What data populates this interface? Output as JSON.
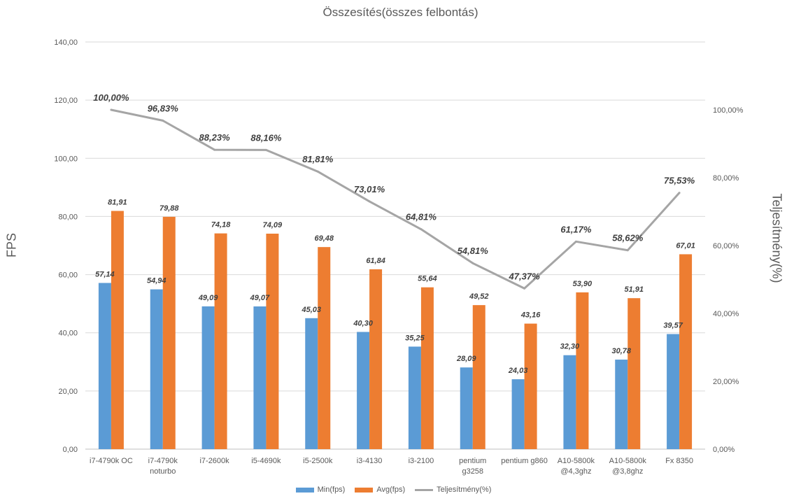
{
  "chart_data": {
    "type": "bar",
    "title": "Összesítés(összes felbontás)",
    "ylabel": "FPS",
    "y2label": "Teljesítmény(%)",
    "ylim": [
      0,
      140
    ],
    "y2lim": [
      0,
      120
    ],
    "y_ticks": [
      "0,00",
      "20,00",
      "40,00",
      "60,00",
      "80,00",
      "100,00",
      "120,00",
      "140,00"
    ],
    "y2_ticks": [
      "0,00%",
      "20,00%",
      "40,00%",
      "60,00%",
      "80,00%",
      "100,00%"
    ],
    "grid": true,
    "legend_position": "bottom",
    "categories": [
      [
        "i7-4790k OC"
      ],
      [
        "i7-4790k",
        "noturbo"
      ],
      [
        "i7-2600k"
      ],
      [
        "i5-4690k"
      ],
      [
        "i5-2500k"
      ],
      [
        "i3-4130"
      ],
      [
        "i3-2100"
      ],
      [
        "pentium",
        "g3258"
      ],
      [
        "pentium g860"
      ],
      [
        "A10-5800k",
        "@4,3ghz"
      ],
      [
        "A10-5800k",
        "@3,8ghz"
      ],
      [
        "Fx 8350"
      ]
    ],
    "series": [
      {
        "name": "Min(fps)",
        "type": "bar",
        "axis": "left",
        "color": "#5b9bd5",
        "values": [
          57.14,
          54.94,
          49.09,
          49.07,
          45.03,
          40.3,
          35.25,
          28.09,
          24.03,
          32.3,
          30.78,
          39.57
        ],
        "labels": [
          "57,14",
          "54,94",
          "49,09",
          "49,07",
          "45,03",
          "40,30",
          "35,25",
          "28,09",
          "24,03",
          "32,30",
          "30,78",
          "39,57"
        ]
      },
      {
        "name": "Avg(fps)",
        "type": "bar",
        "axis": "left",
        "color": "#ed7d31",
        "values": [
          81.91,
          79.88,
          74.18,
          74.09,
          69.48,
          61.84,
          55.64,
          49.52,
          43.16,
          53.9,
          51.91,
          67.01
        ],
        "labels": [
          "81,91",
          "79,88",
          "74,18",
          "74,09",
          "69,48",
          "61,84",
          "55,64",
          "49,52",
          "43,16",
          "53,90",
          "51,91",
          "67,01"
        ]
      },
      {
        "name": "Teljesítmény(%)",
        "type": "line",
        "axis": "right",
        "color": "#a5a5a5",
        "values": [
          100.0,
          96.83,
          88.23,
          88.16,
          81.81,
          73.01,
          64.81,
          54.81,
          47.37,
          61.17,
          58.62,
          75.53
        ],
        "labels": [
          "100,00%",
          "96,83%",
          "88,23%",
          "88,16%",
          "81,81%",
          "73,01%",
          "64,81%",
          "54,81%",
          "47,37%",
          "61,17%",
          "58,62%",
          "75,53%"
        ]
      }
    ]
  }
}
